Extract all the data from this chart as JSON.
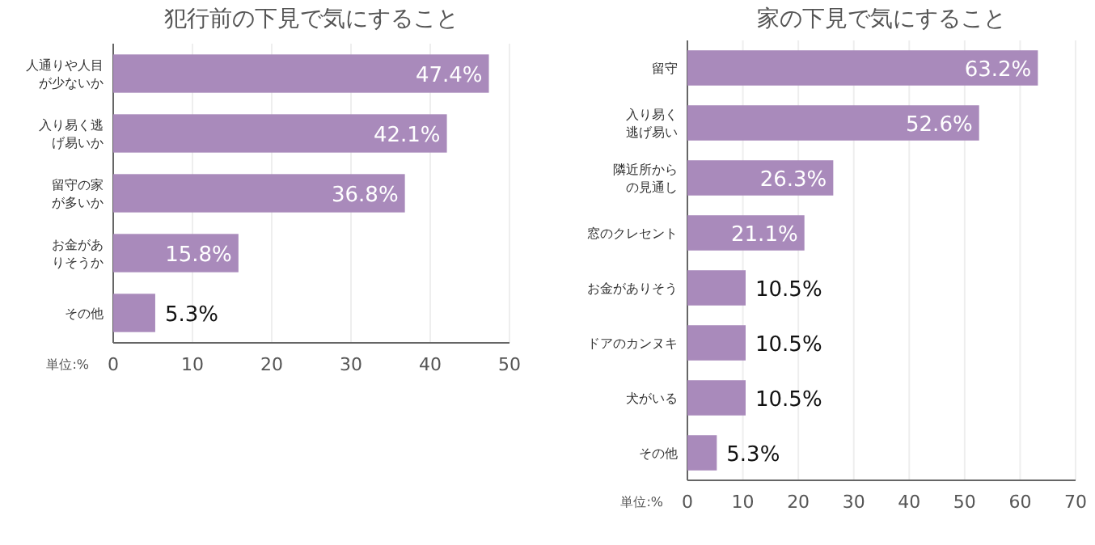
{
  "chart_data": [
    {
      "type": "bar",
      "orientation": "horizontal",
      "title": "犯行前の下見で気にすること",
      "categories": [
        "人通りや人目が少ないか",
        "入り易く逃げ易いか",
        "留守の家が多いか",
        "お金がありそうか",
        "その他"
      ],
      "series": [
        {
          "color": "#a98abb",
          "values": [
            47.4,
            42.1,
            36.8,
            15.8,
            5.3
          ],
          "value_labels": [
            "47.4%",
            "42.1%",
            "36.8%",
            "15.8%",
            "5.3%"
          ]
        }
      ],
      "xlim": [
        0,
        50
      ],
      "xticks": [
        0,
        10,
        20,
        30,
        40,
        50
      ],
      "grid": "x",
      "annotations": [
        "単位:%"
      ]
    },
    {
      "type": "bar",
      "orientation": "horizontal",
      "title": "家の下見で気にすること",
      "categories": [
        "留守",
        "入り易く逃げ易い",
        "隣近所からの見通し",
        "窓のクレセント",
        "お金がありそう",
        "ドアのカンヌキ",
        "犬がいる",
        "その他"
      ],
      "series": [
        {
          "color": "#a98abb",
          "values": [
            63.2,
            52.6,
            26.3,
            21.1,
            10.5,
            10.5,
            10.5,
            5.3
          ],
          "value_labels": [
            "63.2%",
            "52.6%",
            "26.3%",
            "21.1%",
            "10.5%",
            "10.5%",
            "10.5%",
            "5.3%"
          ]
        }
      ],
      "xlim": [
        0,
        70
      ],
      "xticks": [
        0,
        10,
        20,
        30,
        40,
        50,
        60,
        70
      ],
      "grid": "x",
      "annotations": [
        "単位:%"
      ]
    }
  ]
}
